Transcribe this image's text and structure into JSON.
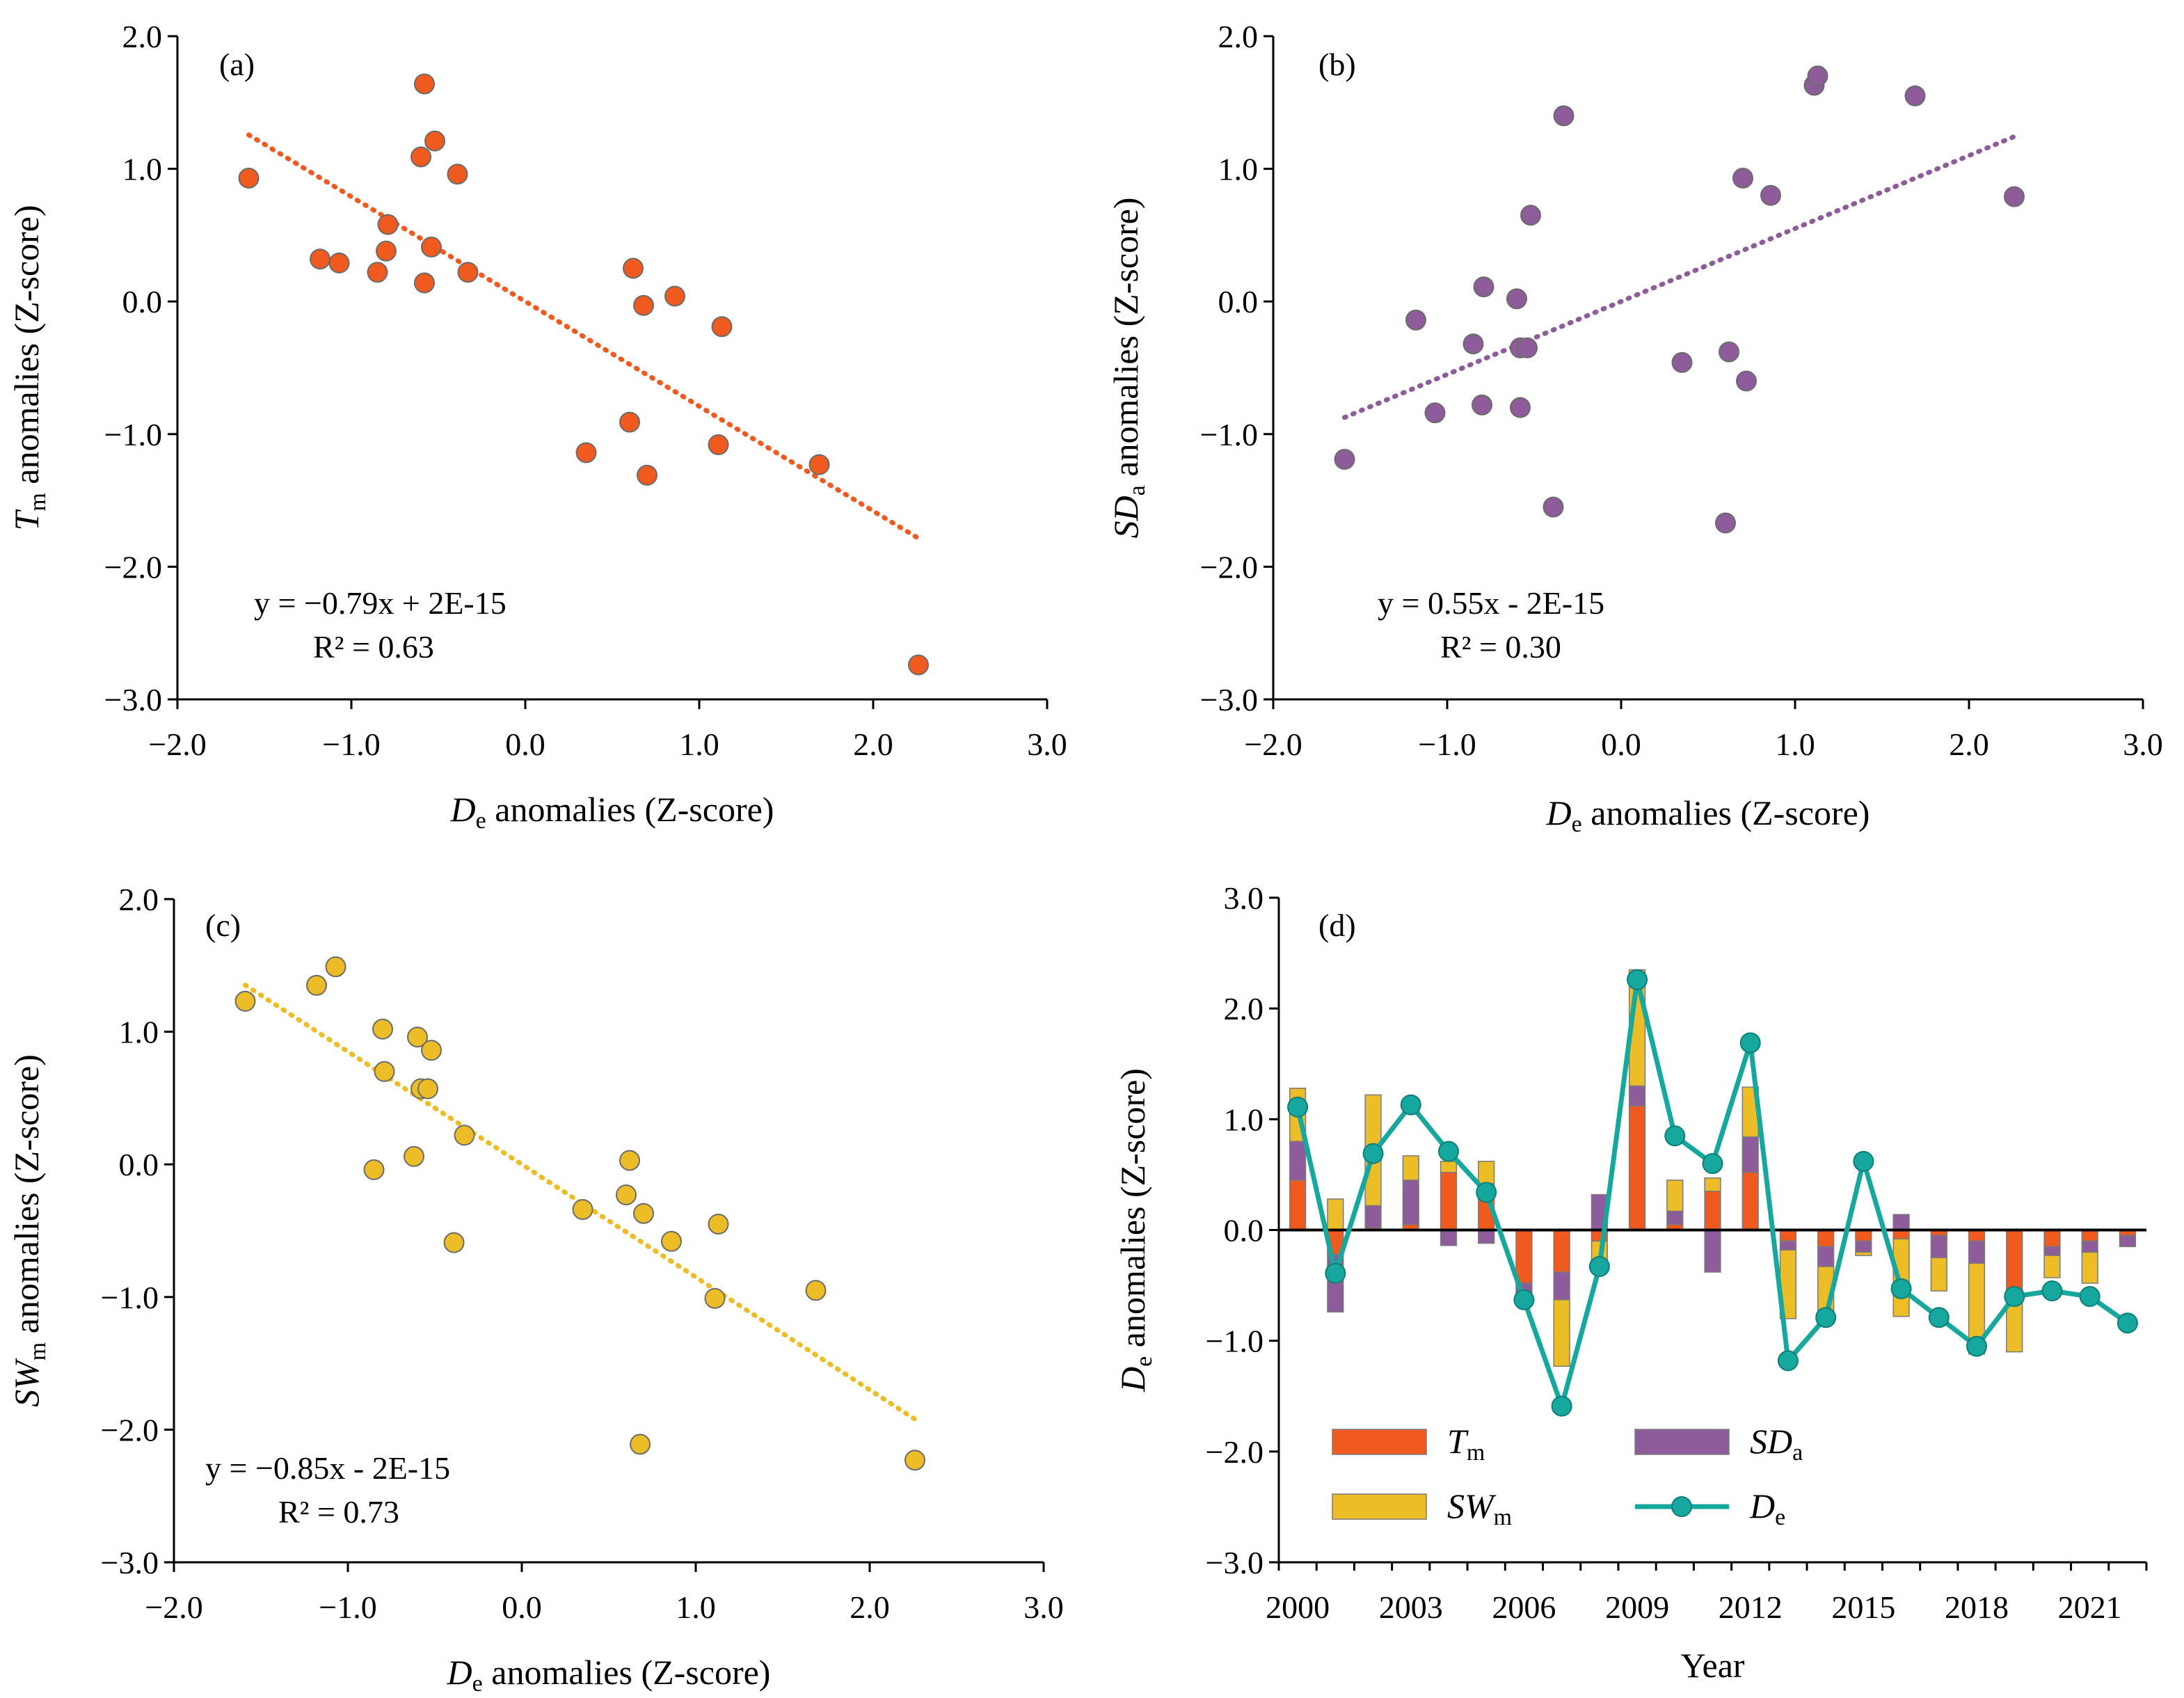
{
  "chart_data": [
    {
      "type": "scatter",
      "panel_label": "(a)",
      "xlabel": {
        "main": "D",
        "sub": "e",
        "rest": " anomalies (Z-score)"
      },
      "ylabel": {
        "main": "T",
        "sub": "m",
        "rest": " anomalies (Z-score)"
      },
      "xlim": [
        -2.0,
        3.0
      ],
      "ylim": [
        -3.0,
        2.0
      ],
      "xticks": [
        "−2.0",
        "−1.0",
        "0.0",
        "1.0",
        "2.0",
        "3.0"
      ],
      "yticks": [
        "−3.0",
        "−2.0",
        "−1.0",
        "0.0",
        "1.0",
        "2.0"
      ],
      "marker_color": "#f05a1e",
      "trend_color": "#f05a1e",
      "points": [
        [
          -1.59,
          0.93
        ],
        [
          -1.18,
          0.32
        ],
        [
          -1.07,
          0.29
        ],
        [
          -0.85,
          0.22
        ],
        [
          -0.8,
          0.38
        ],
        [
          -0.79,
          0.58
        ],
        [
          -0.6,
          1.09
        ],
        [
          -0.58,
          0.14
        ],
        [
          -0.58,
          1.64
        ],
        [
          -0.54,
          0.41
        ],
        [
          -0.52,
          1.21
        ],
        [
          -0.39,
          0.96
        ],
        [
          -0.33,
          0.22
        ],
        [
          0.35,
          -1.14
        ],
        [
          0.6,
          -0.91
        ],
        [
          0.62,
          0.25
        ],
        [
          0.68,
          -0.03
        ],
        [
          0.7,
          -1.31
        ],
        [
          0.86,
          0.04
        ],
        [
          1.11,
          -1.08
        ],
        [
          1.13,
          -0.19
        ],
        [
          1.69,
          -1.23
        ],
        [
          2.26,
          -2.74
        ]
      ],
      "trendline": {
        "slope": -0.79,
        "intercept": 0,
        "x_range": [
          -1.59,
          2.26
        ]
      },
      "equation": "y = −0.79x + 2E-15",
      "r2": "R² = 0.63"
    },
    {
      "type": "scatter",
      "panel_label": "(b)",
      "xlabel": {
        "main": "D",
        "sub": "e",
        "rest": " anomalies (Z-score)"
      },
      "ylabel": {
        "main": "SD",
        "sub": "a",
        "rest": " anomalies (Z-score)"
      },
      "xlim": [
        -2.0,
        3.0
      ],
      "ylim": [
        -3.0,
        2.0
      ],
      "xticks": [
        "−2.0",
        "−1.0",
        "0.0",
        "1.0",
        "2.0",
        "3.0"
      ],
      "yticks": [
        "−3.0",
        "−2.0",
        "−1.0",
        "0.0",
        "1.0",
        "2.0"
      ],
      "marker_color": "#8e5c9b",
      "trend_color": "#8e5c9b",
      "points": [
        [
          -1.59,
          -1.19
        ],
        [
          -1.18,
          -0.14
        ],
        [
          -1.07,
          -0.84
        ],
        [
          -0.85,
          -0.32
        ],
        [
          -0.8,
          -0.78
        ],
        [
          -0.79,
          0.11
        ],
        [
          -0.6,
          0.02
        ],
        [
          -0.58,
          -0.8
        ],
        [
          -0.58,
          -0.35
        ],
        [
          -0.54,
          -0.35
        ],
        [
          -0.52,
          0.65
        ],
        [
          -0.39,
          -1.55
        ],
        [
          -0.33,
          1.4
        ],
        [
          0.35,
          -0.46
        ],
        [
          0.6,
          -1.67
        ],
        [
          0.62,
          -0.38
        ],
        [
          0.7,
          0.93
        ],
        [
          0.72,
          -0.6
        ],
        [
          0.86,
          0.8
        ],
        [
          1.11,
          1.63
        ],
        [
          1.13,
          1.7
        ],
        [
          1.69,
          1.55
        ],
        [
          2.26,
          0.79
        ]
      ],
      "trendline": {
        "slope": 0.55,
        "intercept": 0,
        "x_range": [
          -1.59,
          2.26
        ]
      },
      "equation": "y = 0.55x - 2E-15",
      "r2": "R² = 0.30"
    },
    {
      "type": "scatter",
      "panel_label": "(c)",
      "xlabel": {
        "main": "D",
        "sub": "e",
        "rest": " anomalies (Z-score)"
      },
      "ylabel": {
        "main": "SW",
        "sub": "m",
        "rest": " anomalies (Z-score)"
      },
      "xlim": [
        -2.0,
        3.0
      ],
      "ylim": [
        -3.0,
        2.0
      ],
      "xticks": [
        "−2.0",
        "−1.0",
        "0.0",
        "1.0",
        "2.0",
        "3.0"
      ],
      "yticks": [
        "−3.0",
        "−2.0",
        "−1.0",
        "0.0",
        "1.0",
        "2.0"
      ],
      "marker_color": "#ecbd26",
      "trend_color": "#ecbd26",
      "points": [
        [
          -1.59,
          1.23
        ],
        [
          -1.18,
          1.35
        ],
        [
          -1.07,
          1.49
        ],
        [
          -0.85,
          -0.04
        ],
        [
          -0.8,
          1.02
        ],
        [
          -0.79,
          0.7
        ],
        [
          -0.62,
          0.06
        ],
        [
          -0.6,
          0.96
        ],
        [
          -0.58,
          0.57
        ],
        [
          -0.54,
          0.57
        ],
        [
          -0.52,
          0.86
        ],
        [
          -0.39,
          -0.59
        ],
        [
          -0.33,
          0.22
        ],
        [
          0.35,
          -0.34
        ],
        [
          0.6,
          -0.23
        ],
        [
          0.62,
          0.03
        ],
        [
          0.68,
          -2.11
        ],
        [
          0.7,
          -0.37
        ],
        [
          0.86,
          -0.58
        ],
        [
          1.11,
          -1.01
        ],
        [
          1.13,
          -0.45
        ],
        [
          1.69,
          -0.95
        ],
        [
          2.26,
          -2.23
        ]
      ],
      "trendline": {
        "slope": -0.85,
        "intercept": 0,
        "x_range": [
          -1.59,
          2.26
        ]
      },
      "equation": "y = −0.85x - 2E-15",
      "r2": "R² = 0.73"
    },
    {
      "type": "bar",
      "stacked": true,
      "panel_label": "(d)",
      "xlabel": "Year",
      "ylabel": {
        "main": "D",
        "sub": "e",
        "rest": " anomalies (Z-score)"
      },
      "ylim": [
        -3.0,
        3.0
      ],
      "yticks": [
        "−3.0",
        "−2.0",
        "−1.0",
        "0.0",
        "1.0",
        "2.0",
        "3.0"
      ],
      "xtick_labels": [
        "2000",
        "2003",
        "2006",
        "2009",
        "2012",
        "2015",
        "2018",
        "2021"
      ],
      "categories": [
        2000,
        2001,
        2002,
        2003,
        2004,
        2005,
        2006,
        2007,
        2008,
        2009,
        2010,
        2011,
        2012,
        2013,
        2014,
        2015,
        2016,
        2017,
        2018,
        2019,
        2020,
        2021,
        2022
      ],
      "series": [
        {
          "key": "tm",
          "name": "T",
          "sub": "m",
          "color": "#f05a1e",
          "values": [
            0.45,
            -0.22,
            0.02,
            0.05,
            0.52,
            0.42,
            -0.48,
            -0.38,
            -0.1,
            1.12,
            0.05,
            0.35,
            0.52,
            -0.1,
            -0.15,
            -0.1,
            -0.08,
            -0.05,
            -0.1,
            -0.55,
            -0.15,
            -0.1,
            -0.05
          ]
        },
        {
          "key": "sda",
          "name": "SD",
          "sub": "a",
          "color": "#8e5c9b",
          "values": [
            0.35,
            -0.52,
            0.2,
            0.4,
            -0.14,
            -0.12,
            -0.1,
            -0.25,
            0.32,
            0.18,
            0.12,
            -0.38,
            0.32,
            -0.08,
            -0.18,
            -0.1,
            0.14,
            -0.2,
            -0.2,
            -0.02,
            -0.08,
            -0.1,
            -0.1
          ]
        },
        {
          "key": "swm",
          "name": "SW",
          "sub": "m",
          "color": "#ecbd26",
          "values": [
            0.48,
            0.28,
            1.0,
            0.22,
            0.1,
            0.2,
            -0.05,
            -0.6,
            -0.22,
            1.05,
            0.28,
            0.12,
            0.45,
            -0.62,
            -0.46,
            -0.03,
            -0.7,
            -0.3,
            -0.82,
            -0.53,
            -0.2,
            -0.28,
            0.0
          ]
        }
      ],
      "line": {
        "key": "de",
        "name": "D",
        "sub": "e",
        "color": "#16a89f",
        "values": [
          1.11,
          -0.39,
          0.69,
          1.13,
          0.71,
          0.34,
          -0.63,
          -1.59,
          -0.33,
          2.26,
          0.85,
          0.6,
          1.69,
          -1.18,
          -0.79,
          0.62,
          -0.53,
          -0.79,
          -1.05,
          -0.6,
          -0.55,
          -0.6,
          -0.84
        ]
      }
    }
  ]
}
